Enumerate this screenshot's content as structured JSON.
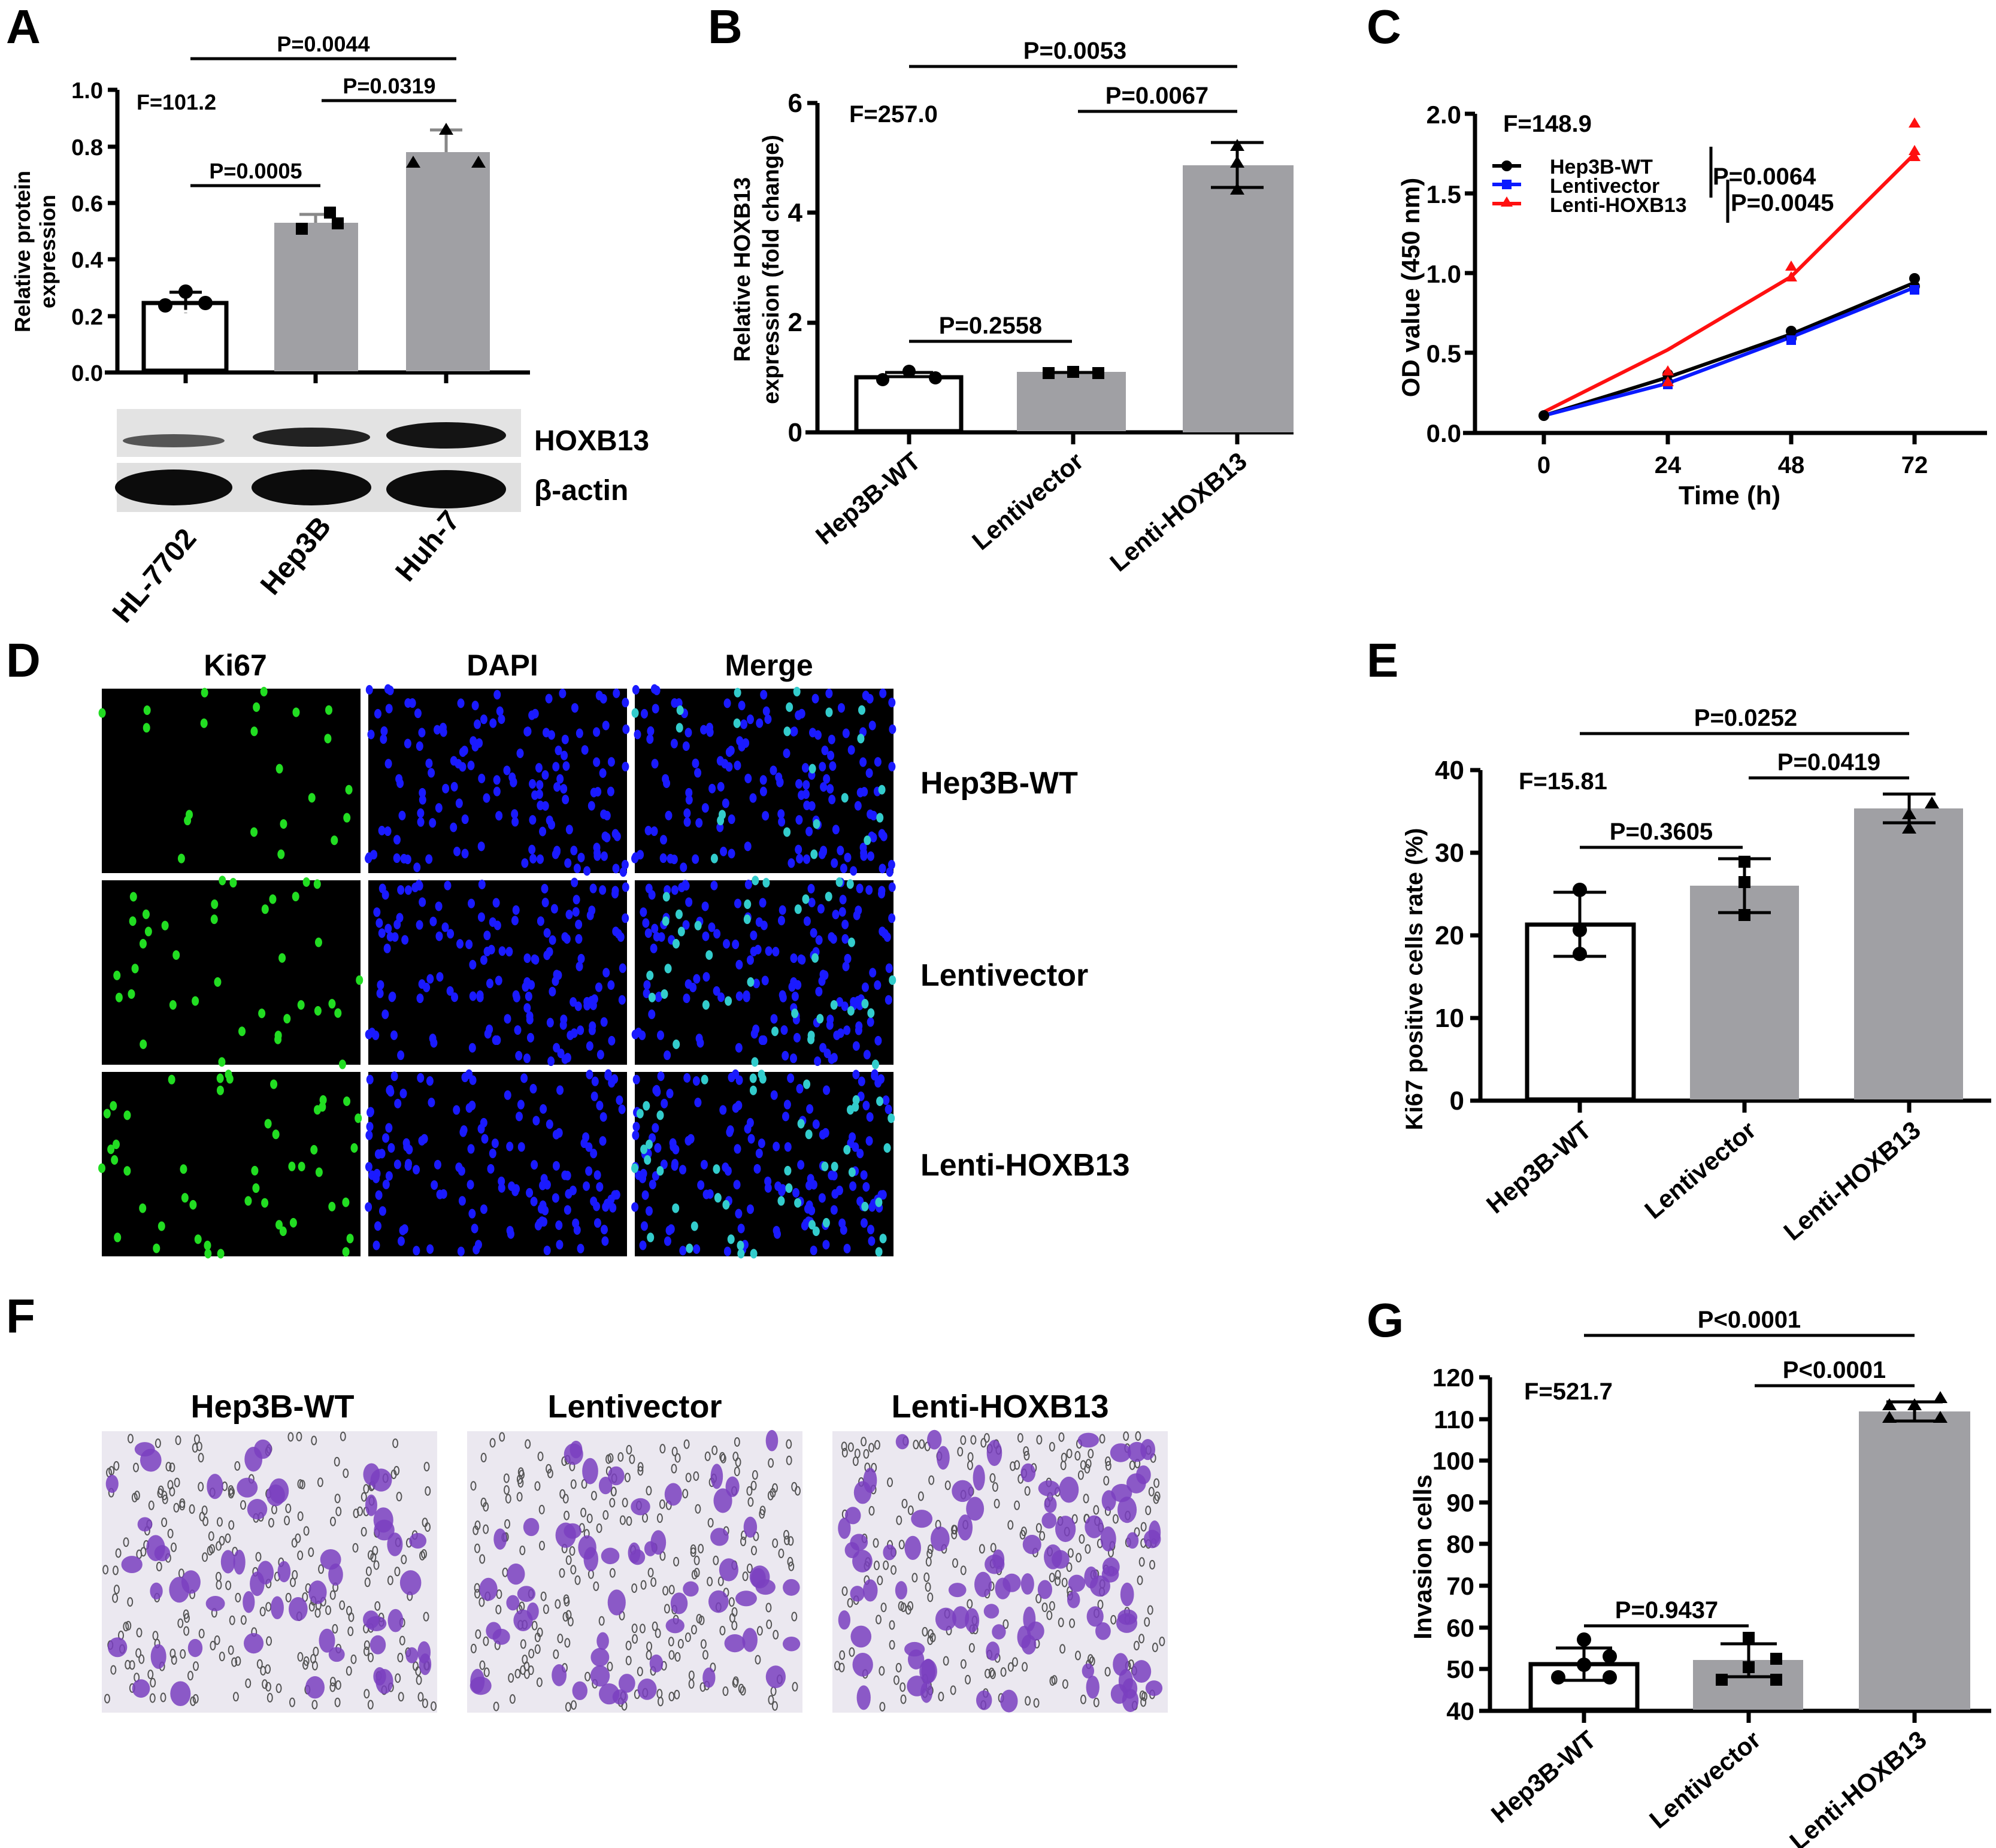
{
  "figure": {
    "panels": [
      "A",
      "B",
      "C",
      "D",
      "E",
      "F",
      "G"
    ]
  },
  "panelA": {
    "label": "A",
    "ylabel_line1": "Relative protein",
    "ylabel_line2": "expression",
    "yticks": [
      "0.0",
      "0.2",
      "0.4",
      "0.6",
      "0.8",
      "1.0"
    ],
    "f_stat": "F=101.2",
    "p_values": [
      "P=0.0044",
      "P=0.0319",
      "P=0.0005"
    ],
    "blot_labels": [
      "HOXB13",
      "β-actin"
    ],
    "categories": [
      "HL-7702",
      "Hep3B",
      "Huh-7"
    ]
  },
  "panelB": {
    "label": "B",
    "ylabel_line1": "Relative HOXB13",
    "ylabel_line2": "expression (fold change)",
    "yticks": [
      "0",
      "2",
      "4",
      "6"
    ],
    "f_stat": "F=257.0",
    "p_values": [
      "P=0.0053",
      "P=0.0067",
      "P=0.2558"
    ],
    "categories": [
      "Hep3B-WT",
      "Lentivector",
      "Lenti-HOXB13"
    ]
  },
  "panelC": {
    "label": "C",
    "ylabel": "OD value (450 nm)",
    "xlabel": "Time (h)",
    "yticks": [
      "0.0",
      "0.5",
      "1.0",
      "1.5",
      "2.0"
    ],
    "xticks": [
      "0",
      "24",
      "48",
      "72"
    ],
    "f_stat": "F=148.9",
    "legend": [
      "Hep3B-WT",
      "Lentivector",
      "Lenti-HOXB13"
    ],
    "p_values": [
      "P=0.0064",
      "P=0.0045"
    ]
  },
  "panelD": {
    "label": "D",
    "columns": [
      "Ki67",
      "DAPI",
      "Merge"
    ],
    "rows": [
      "Hep3B-WT",
      "Lentivector",
      "Lenti-HOXB13"
    ]
  },
  "panelE": {
    "label": "E",
    "ylabel": "Ki67 positive cells rate (%)",
    "yticks": [
      "0",
      "10",
      "20",
      "30",
      "40"
    ],
    "f_stat": "F=15.81",
    "p_values": [
      "P=0.0252",
      "P=0.0419",
      "P=0.3605"
    ],
    "categories": [
      "Hep3B-WT",
      "Lentivector",
      "Lenti-HOXB13"
    ]
  },
  "panelF": {
    "label": "F",
    "columns": [
      "Hep3B-WT",
      "Lentivector",
      "Lenti-HOXB13"
    ]
  },
  "panelG": {
    "label": "G",
    "ylabel": "Invasion cells",
    "yticks": [
      "40",
      "50",
      "60",
      "70",
      "80",
      "90",
      "100",
      "110",
      "120"
    ],
    "f_stat": "F=521.7",
    "p_values": [
      "P<0.0001",
      "P<0.0001",
      "P=0.9437"
    ],
    "categories": [
      "Hep3B-WT",
      "Lentivector",
      "Lenti-HOXB13"
    ]
  },
  "colors": {
    "bar_grey": "#a0a0a4",
    "wt_line": "#000000",
    "vector_line": "#0a1aff",
    "hoxb13_line": "#ff1010",
    "ki67_green": "#22dd22",
    "dapi_blue": "#1a1aff",
    "merge_cyan": "#33cccc",
    "crystal_violet": "#7a3fc0"
  },
  "chart_data": [
    {
      "panel": "A",
      "type": "bar",
      "title": "",
      "categories": [
        "HL-7702",
        "Hep3B",
        "Huh-7"
      ],
      "values": [
        0.245,
        0.53,
        0.78
      ],
      "error_sd": [
        0.03,
        0.025,
        0.065
      ],
      "points": [
        [
          0.28,
          0.23,
          0.235
        ],
        [
          0.56,
          0.51,
          0.535
        ],
        [
          0.85,
          0.73,
          0.73
        ]
      ],
      "xlabel": "",
      "ylabel": "Relative protein expression",
      "ylim": [
        0,
        1.0
      ],
      "annotations": [
        "F=101.2",
        "P=0.0044 (HL-7702 vs Huh-7)",
        "P=0.0319 (Hep3B vs Huh-7)",
        "P=0.0005 (HL-7702 vs Hep3B)"
      ],
      "western_blot": [
        "HOXB13",
        "β-actin"
      ]
    },
    {
      "panel": "B",
      "type": "bar",
      "categories": [
        "Hep3B-WT",
        "Lentivector",
        "Lenti-HOXB13"
      ],
      "values": [
        1.0,
        1.1,
        4.85
      ],
      "error_sd": [
        0.08,
        0.04,
        0.41
      ],
      "points": [
        [
          0.95,
          1.12,
          0.97
        ],
        [
          1.08,
          1.12,
          1.12
        ],
        [
          5.2,
          4.9,
          4.4
        ]
      ],
      "xlabel": "",
      "ylabel": "Relative HOXB13 expression (fold change)",
      "ylim": [
        0,
        6
      ],
      "annotations": [
        "F=257.0",
        "P=0.0053 (Hep3B-WT vs Lenti-HOXB13)",
        "P=0.0067 (Lentivector vs Lenti-HOXB13)",
        "P=0.2558 (Hep3B-WT vs Lentivector)"
      ]
    },
    {
      "panel": "C",
      "type": "line",
      "x": [
        0,
        24,
        48,
        72
      ],
      "series": [
        {
          "name": "Hep3B-WT",
          "values": [
            0.11,
            0.35,
            0.62,
            0.94
          ],
          "marker": "circle",
          "color": "#000000"
        },
        {
          "name": "Lentivector",
          "values": [
            0.11,
            0.31,
            0.6,
            0.91
          ],
          "marker": "square",
          "color": "#0a1aff"
        },
        {
          "name": "Lenti-HOXB13",
          "values": [
            0.13,
            0.52,
            0.98,
            1.75
          ],
          "marker": "triangle",
          "color": "#ff1010"
        }
      ],
      "xlabel": "Time (h)",
      "ylabel": "OD value (450 nm)",
      "ylim": [
        0,
        2.0
      ],
      "legend_position": "upper-left",
      "annotations": [
        "F=148.9",
        "P=0.0064",
        "P=0.0045"
      ]
    },
    {
      "panel": "E",
      "type": "bar",
      "categories": [
        "Hep3B-WT",
        "Lentivector",
        "Lenti-HOXB13"
      ],
      "values": [
        21.3,
        26.0,
        35.4
      ],
      "error_sd": [
        3.9,
        3.3,
        1.8
      ],
      "points": [
        [
          25.6,
          20.7,
          17.8
        ],
        [
          28.9,
          26.5,
          22.5
        ],
        [
          36.8,
          35.5,
          33.8
        ]
      ],
      "xlabel": "",
      "ylabel": "Ki67 positive cells rate (%)",
      "ylim": [
        0,
        40
      ],
      "annotations": [
        "F=15.81",
        "P=0.0252 (Hep3B-WT vs Lenti-HOXB13)",
        "P=0.0419 (Lentivector vs Lenti-HOXB13)",
        "P=0.3605 (Hep3B-WT vs Lentivector)"
      ]
    },
    {
      "panel": "G",
      "type": "bar",
      "categories": [
        "Hep3B-WT",
        "Lentivector",
        "Lenti-HOXB13"
      ],
      "values": [
        51.2,
        52.0,
        112.8
      ],
      "error_sd": [
        3.9,
        4.0,
        2.3
      ],
      "points": [
        [
          57,
          53,
          51,
          48,
          48
        ],
        [
          58,
          53,
          50,
          48,
          48
        ],
        [
          115,
          113,
          111,
          113,
          111
        ]
      ],
      "xlabel": "",
      "ylabel": "Invasion cells",
      "ylim": [
        40,
        120
      ],
      "annotations": [
        "F=521.7",
        "P<0.0001 (Hep3B-WT vs Lenti-HOXB13)",
        "P<0.0001 (Lentivector vs Lenti-HOXB13)",
        "P=0.9437 (Hep3B-WT vs Lentivector)"
      ]
    }
  ]
}
